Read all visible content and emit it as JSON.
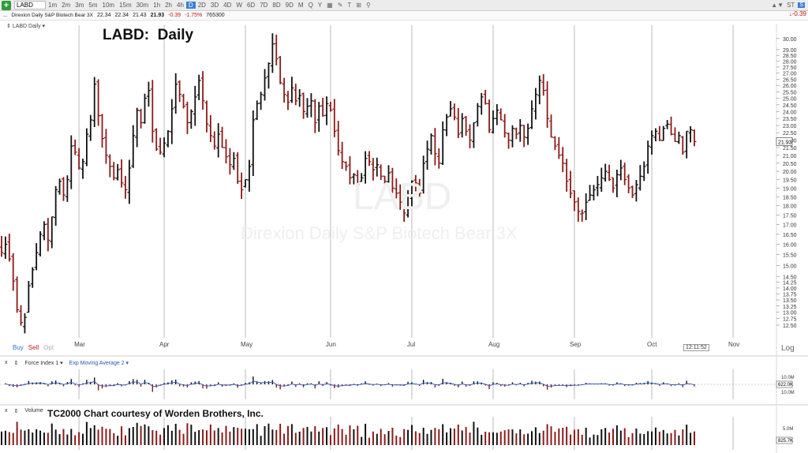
{
  "toolbar": {
    "add_icon": "plus-icon",
    "symbol": "LABD",
    "timeframes": [
      "1m",
      "2m",
      "3m",
      "5m",
      "10m",
      "15m",
      "30m",
      "1h",
      "2h",
      "4h",
      "D",
      "2D",
      "3D",
      "4D",
      "W",
      "6D",
      "7D",
      "8D",
      "9D",
      "M",
      "Q",
      "Y"
    ],
    "active_timeframe": "D",
    "right_label": "ST",
    "right_badge": "S"
  },
  "quote": {
    "name": "Direxion Daily S&P Biotech Bear 3X",
    "open": "22.34",
    "high": "22.34",
    "low": "21.43",
    "last": "21.93",
    "change": "-0.39",
    "change_pct": "-1.75%",
    "volume": "765300",
    "top_right_change": "-0.39"
  },
  "pane": {
    "label": "LABD Daily",
    "title": "LABD:  Daily",
    "watermark_symbol": "LABD",
    "watermark_name": "Direxion Daily S&P Biotech Bear 3X",
    "buy": "Buy",
    "sell": "Sell",
    "opt": "Opt",
    "log": "Log",
    "time": "12:11:52",
    "last_price_tag": "21.93"
  },
  "indicators": {
    "force_index": "Force Index 1",
    "ema": "Exp Moving Average 2",
    "force_pos_label": "10.0M",
    "force_neg_label": "10.0M",
    "force_value_tag": "622.0K",
    "volume": "Volume",
    "volume_title": "TC2000 Chart courtesy of Worden Brothers, Inc.",
    "volume_axis_label": "5.0M",
    "volume_value_tag": "825.7K"
  },
  "chart_data": {
    "type": "ohlc",
    "title": "LABD:  Daily",
    "y_scale": "log",
    "ylim": [
      12.2,
      30.5
    ],
    "y_ticks": [
      12.5,
      12.75,
      13.0,
      13.25,
      13.5,
      13.75,
      14.0,
      14.25,
      14.5,
      15.0,
      15.5,
      16.0,
      16.5,
      17.0,
      17.5,
      18.0,
      18.5,
      19.0,
      19.5,
      20.0,
      20.5,
      21.0,
      21.5,
      22.0,
      22.5,
      23.0,
      23.5,
      24.0,
      24.5,
      25.0,
      25.5,
      26.0,
      26.5,
      27.0,
      27.5,
      28.0,
      28.5,
      29.0,
      30.0
    ],
    "y_tick_labels": [
      "12.50",
      "12.75",
      "13.00",
      "13.25",
      "13.50",
      "13.75",
      "14.00",
      "14.25",
      "14.50",
      "15.00",
      "15.50",
      "16.00",
      "16.50",
      "17.00",
      "17.50",
      "18.00",
      "18.50",
      "19.00",
      "19.50",
      "20.00",
      "20.50",
      "21.00",
      "21.50",
      "22.00",
      "22.50",
      "23.00",
      "23.50",
      "24.00",
      "24.50",
      "25.00",
      "25.50",
      "26.00",
      "26.50",
      "27.00",
      "27.50",
      "28.00",
      "28.50",
      "29.00",
      "30.00"
    ],
    "month_labels": [
      {
        "label": "Mar",
        "bar": 20
      },
      {
        "label": "Apr",
        "bar": 42
      },
      {
        "label": "May",
        "bar": 63
      },
      {
        "label": "Jun",
        "bar": 85
      },
      {
        "label": "Jul",
        "bar": 106
      },
      {
        "label": "Aug",
        "bar": 127
      },
      {
        "label": "Sep",
        "bar": 148
      },
      {
        "label": "Oct",
        "bar": 168
      },
      {
        "label": "Nov",
        "bar": 189
      }
    ],
    "closes": [
      15.6,
      16.0,
      15.3,
      14.3,
      13.1,
      12.6,
      12.8,
      14.1,
      14.8,
      15.6,
      16.5,
      17.0,
      16.2,
      17.4,
      18.9,
      19.4,
      18.6,
      19.5,
      21.6,
      21.2,
      20.2,
      20.6,
      22.4,
      23.4,
      26.1,
      23.7,
      22.1,
      21.0,
      20.3,
      19.6,
      20.1,
      19.3,
      18.9,
      20.2,
      22.3,
      24.1,
      23.2,
      25.0,
      25.6,
      22.6,
      21.4,
      21.2,
      21.8,
      22.6,
      24.2,
      26.1,
      25.3,
      24.4,
      23.2,
      24.0,
      25.1,
      26.4,
      24.8,
      23.1,
      22.3,
      21.6,
      22.4,
      21.5,
      20.9,
      20.4,
      20.8,
      19.4,
      18.9,
      19.5,
      20.3,
      23.4,
      24.6,
      25.3,
      26.6,
      27.8,
      29.5,
      28.2,
      26.2,
      25.3,
      24.7,
      25.8,
      24.8,
      25.2,
      24.0,
      24.4,
      24.8,
      23.2,
      24.4,
      23.7,
      24.6,
      24.1,
      22.6,
      21.3,
      20.6,
      20.3,
      19.6,
      19.8,
      19.2,
      19.6,
      20.8,
      20.6,
      20.1,
      20.4,
      19.7,
      19.4,
      19.9,
      19.0,
      18.7,
      18.2,
      17.6,
      18.6,
      19.4,
      19.3,
      18.7,
      20.5,
      21.4,
      22.3,
      21.1,
      20.5,
      22.7,
      23.6,
      24.2,
      23.6,
      22.4,
      23.5,
      22.6,
      22.0,
      23.2,
      24.4,
      25.1,
      24.6,
      22.7,
      23.5,
      24.1,
      23.4,
      22.5,
      22.0,
      22.8,
      22.4,
      23.0,
      22.2,
      22.8,
      24.2,
      25.3,
      26.4,
      25.6,
      23.5,
      22.2,
      21.6,
      21.0,
      20.5,
      19.4,
      18.7,
      18.2,
      17.7,
      17.6,
      18.2,
      18.6,
      18.9,
      19.2,
      19.6,
      20.0,
      19.5,
      19.0,
      19.8,
      20.2,
      19.5,
      19.0,
      18.6,
      19.2,
      19.7,
      20.3,
      21.6,
      22.3,
      22.6,
      22.0,
      22.8,
      23.1,
      22.4,
      21.9,
      22.3,
      21.2,
      22.6,
      22.7,
      21.9
    ],
    "up_color": "#111111",
    "down_color": "#8b1a1a"
  }
}
